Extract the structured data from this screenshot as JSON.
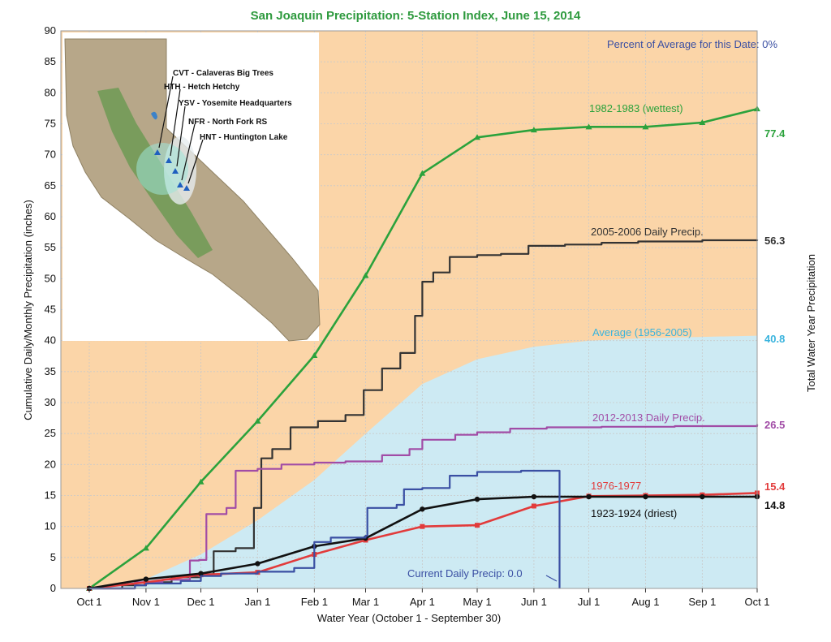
{
  "chart_data": {
    "type": "line",
    "title": "San Joaquin Precipitation: 5-Station Index, June 15, 2014",
    "xlabel": "Water Year (October 1 - September 30)",
    "ylabel": "Cumulative Daily/Monthly Precipitation (inches)",
    "y2label": "Total Water Year Precipitation",
    "ylim": [
      0,
      90
    ],
    "yticks": [
      0,
      5,
      10,
      15,
      20,
      25,
      30,
      35,
      40,
      45,
      50,
      55,
      60,
      65,
      70,
      75,
      80,
      85,
      90
    ],
    "categories": [
      "Oct 1",
      "Nov 1",
      "Dec 1",
      "Jan 1",
      "Feb 1",
      "Mar 1",
      "Apr 1",
      "May 1",
      "Jun 1",
      "Jul 1",
      "Aug 1",
      "Sep 1",
      "Oct 1"
    ],
    "x_unit": "days since Oct 1",
    "x_tick_days": [
      0,
      31,
      61,
      92,
      123,
      151,
      182,
      212,
      243,
      273,
      304,
      335,
      365
    ],
    "percent_text": "Percent of Average for this Date: 0%",
    "colors": {
      "background": "#fbd5a8",
      "average": "#cdeaf3",
      "wettest": "#2ba23c",
      "y2005": "#333333",
      "y2012": "#a14ca6",
      "y1976": "#e23b3b",
      "y1923": "#111111",
      "current": "#3a4fa3",
      "avg_text": "#3ab4de"
    },
    "series": [
      {
        "key": "average",
        "name": "Average (1956-2005)",
        "kind": "area",
        "end_label": "40.8",
        "points": [
          [
            0,
            0
          ],
          [
            31,
            1.5
          ],
          [
            61,
            5.5
          ],
          [
            92,
            11
          ],
          [
            123,
            17.5
          ],
          [
            151,
            25
          ],
          [
            182,
            33
          ],
          [
            212,
            37
          ],
          [
            243,
            39
          ],
          [
            273,
            40
          ],
          [
            304,
            40.4
          ],
          [
            335,
            40.6
          ],
          [
            365,
            40.8
          ]
        ]
      },
      {
        "key": "wettest",
        "name": "1982-1983 (wettest)",
        "kind": "monthly",
        "end_label": "77.4",
        "points": [
          [
            0,
            0
          ],
          [
            31,
            6.5
          ],
          [
            61,
            17.2
          ],
          [
            92,
            27
          ],
          [
            123,
            37.6
          ],
          [
            151,
            50.5
          ],
          [
            182,
            67
          ],
          [
            212,
            72.8
          ],
          [
            243,
            74
          ],
          [
            273,
            74.5
          ],
          [
            304,
            74.5
          ],
          [
            335,
            75.2
          ],
          [
            365,
            77.4
          ]
        ]
      },
      {
        "key": "y2005",
        "name": "2005-2006 Daily Precip.",
        "kind": "daily",
        "end_label": "56.3",
        "points": [
          [
            0,
            0
          ],
          [
            18,
            0.5
          ],
          [
            31,
            1
          ],
          [
            45,
            1.8
          ],
          [
            61,
            2.3
          ],
          [
            68,
            6
          ],
          [
            80,
            6.5
          ],
          [
            90,
            13
          ],
          [
            94,
            21
          ],
          [
            100,
            22.5
          ],
          [
            110,
            26
          ],
          [
            125,
            27
          ],
          [
            140,
            28
          ],
          [
            150,
            32
          ],
          [
            160,
            35.5
          ],
          [
            170,
            38
          ],
          [
            178,
            44
          ],
          [
            182,
            49.5
          ],
          [
            188,
            51
          ],
          [
            197,
            53.5
          ],
          [
            212,
            53.8
          ],
          [
            225,
            54
          ],
          [
            240,
            55.3
          ],
          [
            260,
            55.5
          ],
          [
            280,
            55.8
          ],
          [
            300,
            56
          ],
          [
            335,
            56.2
          ],
          [
            365,
            56.3
          ]
        ]
      },
      {
        "key": "y2012",
        "name": "2012-2013 Daily Precip.",
        "kind": "daily",
        "end_label": "26.5",
        "points": [
          [
            0,
            0
          ],
          [
            25,
            1
          ],
          [
            40,
            1.4
          ],
          [
            55,
            4.5
          ],
          [
            60,
            4.6
          ],
          [
            64,
            12
          ],
          [
            75,
            13
          ],
          [
            80,
            19
          ],
          [
            92,
            19.3
          ],
          [
            105,
            20
          ],
          [
            123,
            20.3
          ],
          [
            140,
            20.5
          ],
          [
            160,
            21.5
          ],
          [
            175,
            22.5
          ],
          [
            182,
            24
          ],
          [
            200,
            24.8
          ],
          [
            212,
            25.2
          ],
          [
            230,
            25.8
          ],
          [
            250,
            26
          ],
          [
            280,
            26.1
          ],
          [
            320,
            26.2
          ],
          [
            365,
            26.5
          ]
        ]
      },
      {
        "key": "y1976",
        "name": "1976-1977",
        "kind": "monthly",
        "end_label": "15.4",
        "points": [
          [
            0,
            0
          ],
          [
            31,
            1
          ],
          [
            61,
            2.2
          ],
          [
            92,
            2.6
          ],
          [
            123,
            5.5
          ],
          [
            151,
            7.8
          ],
          [
            182,
            10
          ],
          [
            212,
            10.2
          ],
          [
            243,
            13.3
          ],
          [
            273,
            14.9
          ],
          [
            304,
            15
          ],
          [
            335,
            15.1
          ],
          [
            365,
            15.4
          ]
        ]
      },
      {
        "key": "y1923",
        "name": "1923-1924 (driest)",
        "kind": "monthly",
        "end_label": "14.8",
        "points": [
          [
            0,
            0
          ],
          [
            31,
            1.5
          ],
          [
            61,
            2.4
          ],
          [
            92,
            4
          ],
          [
            123,
            6.8
          ],
          [
            151,
            8.1
          ],
          [
            182,
            12.8
          ],
          [
            212,
            14.4
          ],
          [
            243,
            14.8
          ],
          [
            273,
            14.8
          ],
          [
            304,
            14.8
          ],
          [
            335,
            14.8
          ],
          [
            365,
            14.8
          ]
        ]
      },
      {
        "key": "current",
        "name": "Current Daily Precip: 0.0",
        "kind": "daily",
        "end_label": "",
        "points": [
          [
            0,
            0
          ],
          [
            25,
            0.5
          ],
          [
            31,
            0.8
          ],
          [
            50,
            1.2
          ],
          [
            61,
            2
          ],
          [
            72,
            2.4
          ],
          [
            92,
            2.7
          ],
          [
            112,
            3.3
          ],
          [
            123,
            7.5
          ],
          [
            132,
            8.2
          ],
          [
            151,
            8.5
          ],
          [
            152,
            13
          ],
          [
            168,
            13.5
          ],
          [
            172,
            16
          ],
          [
            182,
            16.2
          ],
          [
            197,
            18.2
          ],
          [
            212,
            18.8
          ],
          [
            236,
            19
          ],
          [
            256,
            19
          ],
          [
            257,
            0
          ]
        ]
      }
    ]
  },
  "inset_map": {
    "stations": [
      "CVT - Calaveras Big Trees",
      "HTH - Hetch Hetchy",
      "YSV - Yosemite Headquarters",
      "NFR - North Fork RS",
      "HNT - Huntington Lake"
    ]
  }
}
